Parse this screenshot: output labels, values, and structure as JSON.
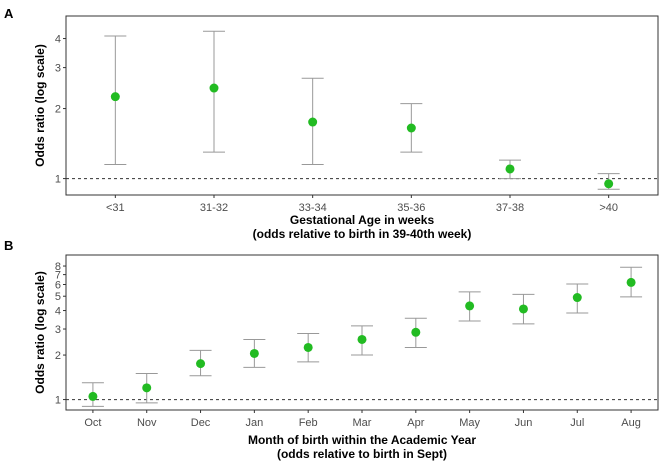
{
  "chart_data": [
    {
      "type": "scatter",
      "panel": "A",
      "ylabel": "Odds ratio (log scale)",
      "xlabel": [
        "Gestational Age in weeks",
        "(odds relative to birth in 39-40th week)"
      ],
      "y_scale": "log",
      "ylim": [
        0.85,
        5.0
      ],
      "yticks": [
        1,
        2,
        3,
        4
      ],
      "reference_line": 1,
      "grid": false,
      "point_color": "#22bb22",
      "errorbar_color": "#999999",
      "categories": [
        "<31",
        "31-32",
        "33-34",
        "35-36",
        "37-38",
        ">40"
      ],
      "estimate": [
        2.25,
        2.45,
        1.75,
        1.65,
        1.1,
        0.95
      ],
      "lower": [
        1.15,
        1.3,
        1.15,
        1.3,
        1.0,
        0.9
      ],
      "upper": [
        4.1,
        4.3,
        2.7,
        2.1,
        1.2,
        1.05
      ]
    },
    {
      "type": "scatter",
      "panel": "B",
      "ylabel": "Odds ratio (log scale)",
      "xlabel": [
        "Month of birth within the Academic Year",
        "(odds relative to birth in Sept)"
      ],
      "y_scale": "log",
      "ylim": [
        0.85,
        9.5
      ],
      "yticks": [
        1,
        2,
        3,
        4,
        5,
        6,
        7,
        8
      ],
      "reference_line": 1,
      "grid": false,
      "point_color": "#22bb22",
      "errorbar_color": "#999999",
      "categories": [
        "Oct",
        "Nov",
        "Dec",
        "Jan",
        "Feb",
        "Mar",
        "Apr",
        "May",
        "Jun",
        "Jul",
        "Aug"
      ],
      "estimate": [
        1.05,
        1.2,
        1.75,
        2.05,
        2.25,
        2.55,
        2.85,
        4.3,
        4.1,
        4.9,
        6.2
      ],
      "lower": [
        0.9,
        0.95,
        1.45,
        1.65,
        1.8,
        2.0,
        2.25,
        3.4,
        3.25,
        3.85,
        4.95
      ],
      "upper": [
        1.3,
        1.5,
        2.15,
        2.55,
        2.8,
        3.15,
        3.55,
        5.35,
        5.15,
        6.05,
        7.85
      ]
    }
  ]
}
